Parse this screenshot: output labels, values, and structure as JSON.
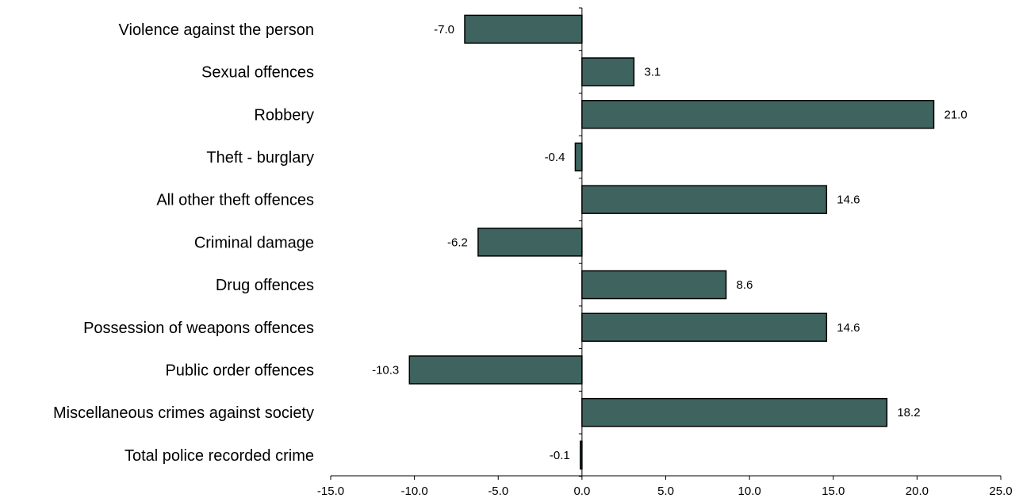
{
  "chart_data": {
    "type": "bar",
    "orientation": "horizontal",
    "title": "",
    "xlabel": "",
    "ylabel": "",
    "xlim": [
      -15,
      25
    ],
    "x_ticks": [
      -15,
      -10,
      -5,
      0,
      5,
      10,
      15,
      20,
      25
    ],
    "x_tick_labels": [
      "-15.0",
      "-10.0",
      "-5.0",
      "0.0",
      "5.0",
      "10.0",
      "15.0",
      "20.0",
      "25.0"
    ],
    "grid": false,
    "bar_color": "#3f635e",
    "categories": [
      "Violence against the person",
      "Sexual offences",
      "Robbery",
      "Theft - burglary",
      "All other theft offences",
      "Criminal damage",
      "Drug offences",
      "Possession of weapons offences",
      "Public order offences",
      "Miscellaneous crimes against society",
      "Total police recorded crime"
    ],
    "values": [
      -7.0,
      3.1,
      21.0,
      -0.4,
      14.6,
      -6.2,
      8.6,
      14.6,
      -10.3,
      18.2,
      -0.1
    ],
    "value_labels": [
      "-7.0",
      "3.1",
      "21.0",
      "-0.4",
      "14.6",
      "-6.2",
      "8.6",
      "14.6",
      "-10.3",
      "18.2",
      "-0.1"
    ]
  }
}
